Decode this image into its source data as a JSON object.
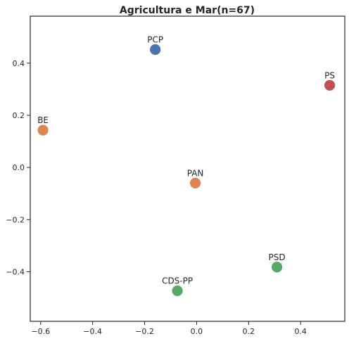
{
  "chart_data": {
    "type": "scatter",
    "title": "Agricultura e Mar(n=67)",
    "xlabel": "",
    "ylabel": "",
    "xlim": [
      -0.64,
      0.57
    ],
    "ylim": [
      -0.59,
      0.58
    ],
    "xticks": [
      -0.6,
      -0.4,
      -0.2,
      0.0,
      0.2,
      0.4
    ],
    "yticks": [
      -0.4,
      -0.2,
      0.0,
      0.2,
      0.4
    ],
    "xtick_labels": [
      "−0.6",
      "−0.4",
      "−0.2",
      "0.0",
      "0.2",
      "0.4"
    ],
    "ytick_labels": [
      "−0.4",
      "−0.2",
      "0.0",
      "0.2",
      "0.4"
    ],
    "grid": false,
    "points": [
      {
        "label": "PCP",
        "x": -0.159,
        "y": 0.452,
        "color": "#4c72b0"
      },
      {
        "label": "PS",
        "x": 0.512,
        "y": 0.315,
        "color": "#c44e52"
      },
      {
        "label": "BE",
        "x": -0.591,
        "y": 0.143,
        "color": "#dd8452"
      },
      {
        "label": "PAN",
        "x": -0.005,
        "y": -0.06,
        "color": "#dd8452"
      },
      {
        "label": "PSD",
        "x": 0.309,
        "y": -0.382,
        "color": "#55a868"
      },
      {
        "label": "CDS-PP",
        "x": -0.074,
        "y": -0.473,
        "color": "#55a868"
      }
    ]
  }
}
